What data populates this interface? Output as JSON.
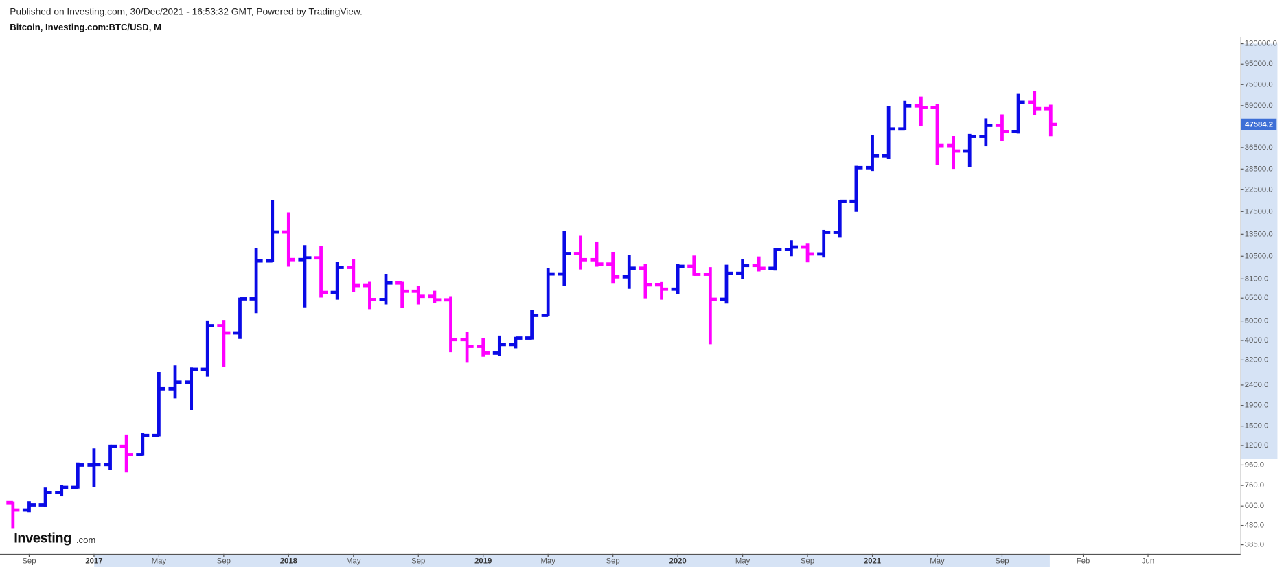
{
  "chart_data": {
    "type": "ohlc",
    "header": "Published on Investing.com, 30/Dec/2021 - 16:53:32 GMT, Powered by TradingView.",
    "title": "Bitcoin, Investing.com:BTC/USD, M",
    "logo": "Investing",
    "logo_suffix": ".com",
    "x": [
      "2016-08",
      "2016-09",
      "2016-10",
      "2016-11",
      "2016-12",
      "2017-01",
      "2017-02",
      "2017-03",
      "2017-04",
      "2017-05",
      "2017-06",
      "2017-07",
      "2017-08",
      "2017-09",
      "2017-10",
      "2017-11",
      "2017-12",
      "2018-01",
      "2018-02",
      "2018-03",
      "2018-04",
      "2018-05",
      "2018-06",
      "2018-07",
      "2018-08",
      "2018-09",
      "2018-10",
      "2018-11",
      "2018-12",
      "2019-01",
      "2019-02",
      "2019-03",
      "2019-04",
      "2019-05",
      "2019-06",
      "2019-07",
      "2019-08",
      "2019-09",
      "2019-10",
      "2019-11",
      "2019-12",
      "2020-01",
      "2020-02",
      "2020-03",
      "2020-04",
      "2020-05",
      "2020-06",
      "2020-07",
      "2020-08",
      "2020-09",
      "2020-10",
      "2020-11",
      "2020-12",
      "2021-01",
      "2021-02",
      "2021-03",
      "2021-04",
      "2021-05",
      "2021-06",
      "2021-07",
      "2021-08",
      "2021-09",
      "2021-10",
      "2021-11",
      "2021-12"
    ],
    "open": [
      624,
      573,
      608,
      700,
      743,
      960,
      965,
      1189,
      1080,
      1348,
      2300,
      2480,
      2875,
      4735,
      4360,
      6440,
      9950,
      13850,
      10100,
      10300,
      6930,
      9240,
      7500,
      6390,
      7730,
      7030,
      6630,
      6370,
      4040,
      3740,
      3460,
      3820,
      4110,
      5330,
      8570,
      10820,
      10090,
      9600,
      8290,
      9150,
      7570,
      7200,
      9350,
      8540,
      6410,
      8630,
      9450,
      9140,
      11340,
      11650,
      10780,
      13800,
      19700,
      28950,
      33110,
      45160,
      58800,
      57720,
      37300,
      35040,
      41490,
      47100,
      43820,
      61310,
      57000
    ],
    "high": [
      626,
      628,
      735,
      755,
      979,
      1150,
      1200,
      1350,
      1370,
      2760,
      2980,
      2910,
      4980,
      5010,
      6470,
      11400,
      19870,
      17180,
      11800,
      11650,
      9760,
      10020,
      7760,
      8500,
      7760,
      7400,
      7000,
      6580,
      4360,
      4070,
      4190,
      4130,
      5640,
      9090,
      13900,
      13150,
      12300,
      10930,
      10540,
      9520,
      7740,
      9560,
      10480,
      9180,
      9440,
      10050,
      10370,
      11420,
      12470,
      12080,
      14060,
      19760,
      29300,
      41950,
      58330,
      61780,
      64850,
      59530,
      41300,
      42320,
      50480,
      52900,
      66930,
      69000,
      59050
    ],
    "low": [
      470,
      564,
      602,
      677,
      740,
      752,
      919,
      890,
      1080,
      1348,
      2080,
      1810,
      2670,
      2970,
      4110,
      5520,
      9900,
      9400,
      5900,
      6600,
      6440,
      7040,
      5780,
      6100,
      5880,
      6100,
      6200,
      3530,
      3130,
      3350,
      3390,
      3690,
      4080,
      5330,
      7550,
      9100,
      9400,
      7740,
      7300,
      6540,
      6440,
      6870,
      8470,
      3870,
      6160,
      8170,
      8900,
      8990,
      10600,
      9880,
      10440,
      13200,
      17600,
      28130,
      32380,
      45000,
      47000,
      30070,
      28800,
      29300,
      37370,
      39600,
      43300,
      53360,
      42000
    ],
    "close": [
      573,
      608,
      700,
      743,
      960,
      965,
      1189,
      1080,
      1348,
      2300,
      2480,
      2875,
      4735,
      4360,
      6440,
      9950,
      13850,
      10100,
      10300,
      6930,
      9240,
      7500,
      6390,
      7730,
      7030,
      6630,
      6370,
      4040,
      3740,
      3460,
      3820,
      4110,
      5330,
      8570,
      10820,
      10090,
      9600,
      8290,
      9150,
      7570,
      7200,
      9350,
      8540,
      6410,
      8630,
      9450,
      9140,
      11340,
      11650,
      10780,
      13800,
      19700,
      28950,
      33110,
      45160,
      58800,
      57720,
      37300,
      35040,
      41490,
      47100,
      43820,
      61310,
      57000,
      47584.2
    ],
    "up_color": "#0a0ae6",
    "down_color": "#ff00ff",
    "last_price": 47584.2,
    "log_scale": true,
    "ylim": [
      347,
      129400
    ],
    "yticks": [
      {
        "value": 385,
        "label": "385.0"
      },
      {
        "value": 480,
        "label": "480.0"
      },
      {
        "value": 600,
        "label": "600.0"
      },
      {
        "value": 760,
        "label": "760.0"
      },
      {
        "value": 960,
        "label": "960.0"
      },
      {
        "value": 1200,
        "label": "1200.0"
      },
      {
        "value": 1500,
        "label": "1500.0"
      },
      {
        "value": 1900,
        "label": "1900.0"
      },
      {
        "value": 2400,
        "label": "2400.0"
      },
      {
        "value": 3200,
        "label": "3200.0"
      },
      {
        "value": 4000,
        "label": "4000.0"
      },
      {
        "value": 5000,
        "label": "5000.0"
      },
      {
        "value": 6500,
        "label": "6500.0"
      },
      {
        "value": 8100,
        "label": "8100.0"
      },
      {
        "value": 10500,
        "label": "10500.0"
      },
      {
        "value": 13500,
        "label": "13500.0"
      },
      {
        "value": 17500,
        "label": "17500.0"
      },
      {
        "value": 22500,
        "label": "22500.0"
      },
      {
        "value": 28500,
        "label": "28500.0"
      },
      {
        "value": 36500,
        "label": "36500.0"
      },
      {
        "value": 59000,
        "label": "59000.0"
      },
      {
        "value": 75000,
        "label": "75000.0"
      },
      {
        "value": 95000,
        "label": "95000.0"
      },
      {
        "value": 120000,
        "label": "120000.0"
      }
    ],
    "xlim": [
      "2016-07",
      "2022-11"
    ],
    "xticks": [
      {
        "value": "2016-09",
        "label": "Sep"
      },
      {
        "value": "2017-01",
        "label": "2017"
      },
      {
        "value": "2017-05",
        "label": "May"
      },
      {
        "value": "2017-09",
        "label": "Sep"
      },
      {
        "value": "2018-01",
        "label": "2018"
      },
      {
        "value": "2018-05",
        "label": "May"
      },
      {
        "value": "2018-09",
        "label": "Sep"
      },
      {
        "value": "2019-01",
        "label": "2019"
      },
      {
        "value": "2019-05",
        "label": "May"
      },
      {
        "value": "2019-09",
        "label": "Sep"
      },
      {
        "value": "2020-01",
        "label": "2020"
      },
      {
        "value": "2020-05",
        "label": "May"
      },
      {
        "value": "2020-09",
        "label": "Sep"
      },
      {
        "value": "2021-01",
        "label": "2021"
      },
      {
        "value": "2021-05",
        "label": "May"
      },
      {
        "value": "2021-09",
        "label": "Sep"
      },
      {
        "value": "2022-02",
        "label": "Feb"
      },
      {
        "value": "2022-06",
        "label": "Jun"
      }
    ]
  }
}
